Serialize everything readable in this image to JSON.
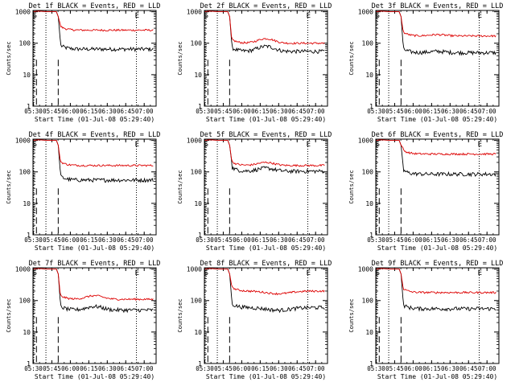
{
  "chart_data": [
    {
      "type": "line",
      "title": "Det 1f BLACK = Events, RED = LLD",
      "xlabel": "Start Time (01-Jul-08 05:29:40)",
      "ylabel": "Counts/sec",
      "series": [
        {
          "name": "BLACK = Events",
          "color": "#000000",
          "level": 65,
          "bump": 0,
          "dip": 0
        },
        {
          "name": "RED = LLD",
          "color": "#dd0000",
          "level": 260,
          "bump": 0,
          "dip": 0
        }
      ]
    },
    {
      "type": "line",
      "title": "Det 2f BLACK = Events, RED = LLD",
      "xlabel": "Start Time (01-Jul-08 05:29:40)",
      "ylabel": "Counts/sec",
      "series": [
        {
          "name": "BLACK = Events",
          "color": "#000000",
          "level": 55,
          "bump": 0.45,
          "dip": 0
        },
        {
          "name": "RED = LLD",
          "color": "#dd0000",
          "level": 100,
          "bump": 0.4,
          "dip": 0
        }
      ]
    },
    {
      "type": "line",
      "title": "Det 3f BLACK = Events, RED = LLD",
      "xlabel": "Start Time (01-Jul-08 05:29:40)",
      "ylabel": "Counts/sec",
      "series": [
        {
          "name": "BLACK = Events",
          "color": "#000000",
          "level": 50,
          "bump": 0.1,
          "dip": 0
        },
        {
          "name": "RED = LLD",
          "color": "#dd0000",
          "level": 170,
          "bump": 0.1,
          "dip": 0
        }
      ]
    },
    {
      "type": "line",
      "title": "Det 4f BLACK = Events, RED = LLD",
      "xlabel": "Start Time (01-Jul-08 05:29:40)",
      "ylabel": "Counts/sec",
      "series": [
        {
          "name": "BLACK = Events",
          "color": "#000000",
          "level": 55,
          "bump": 0,
          "dip": 0
        },
        {
          "name": "RED = LLD",
          "color": "#dd0000",
          "level": 160,
          "bump": 0,
          "dip": 0
        }
      ]
    },
    {
      "type": "line",
      "title": "Det 5f BLACK = Events, RED = LLD",
      "xlabel": "Start Time (01-Jul-08 05:29:40)",
      "ylabel": "Counts/sec",
      "series": [
        {
          "name": "BLACK = Events",
          "color": "#000000",
          "level": 105,
          "bump": 0.25,
          "dip": 0
        },
        {
          "name": "RED = LLD",
          "color": "#dd0000",
          "level": 160,
          "bump": 0.25,
          "dip": 0
        }
      ]
    },
    {
      "type": "line",
      "title": "Det 6f BLACK = Events, RED = LLD",
      "xlabel": "Start Time (01-Jul-08 05:29:40)",
      "ylabel": "Counts/sec",
      "series": [
        {
          "name": "BLACK = Events",
          "color": "#000000",
          "level": 85,
          "bump": 0,
          "dip": 0
        },
        {
          "name": "RED = LLD",
          "color": "#dd0000",
          "level": 370,
          "bump": 0,
          "dip": 0
        }
      ]
    },
    {
      "type": "line",
      "title": "Det 7f BLACK = Events, RED = LLD",
      "xlabel": "Start Time (01-Jul-08 05:29:40)",
      "ylabel": "Counts/sec",
      "series": [
        {
          "name": "BLACK = Events",
          "color": "#000000",
          "level": 50,
          "bump": 0.3,
          "dip": 0
        },
        {
          "name": "RED = LLD",
          "color": "#dd0000",
          "level": 110,
          "bump": 0.3,
          "dip": 0
        }
      ]
    },
    {
      "type": "line",
      "title": "Det 8f BLACK = Events, RED = LLD",
      "xlabel": "Start Time (01-Jul-08 05:29:40)",
      "ylabel": "Counts/sec",
      "series": [
        {
          "name": "BLACK = Events",
          "color": "#000000",
          "level": 60,
          "bump": 0,
          "dip": 0.35
        },
        {
          "name": "RED = LLD",
          "color": "#dd0000",
          "level": 200,
          "bump": 0,
          "dip": 0.35
        }
      ]
    },
    {
      "type": "line",
      "title": "Det 9f BLACK = Events, RED = LLD",
      "xlabel": "Start Time (01-Jul-08 05:29:40)",
      "ylabel": "Counts/sec",
      "series": [
        {
          "name": "BLACK = Events",
          "color": "#000000",
          "level": 55,
          "bump": 0,
          "dip": 0
        },
        {
          "name": "RED = LLD",
          "color": "#dd0000",
          "level": 180,
          "bump": 0,
          "dip": 0
        }
      ]
    }
  ],
  "shared_axes": {
    "x_ticks": [
      "05:30",
      "05:45",
      "06:00",
      "06:15",
      "06:30",
      "06:45",
      "07:00"
    ],
    "x_tick_minutes": [
      0.33,
      15.33,
      30.33,
      45.33,
      60.33,
      75.33,
      90.33
    ],
    "x_range_minutes": [
      0,
      100
    ],
    "y_ticks": [
      "1",
      "10",
      "100",
      "1000"
    ],
    "y_tick_values": [
      1,
      10,
      100,
      1000
    ],
    "y_range": [
      1,
      1100
    ],
    "y_scale": "log",
    "dotted_markers_minutes": [
      -1.5,
      10.5,
      84
    ],
    "dashed_markers_minutes": [
      2.8,
      20.5
    ],
    "dashed_marker_range": [
      1,
      30
    ],
    "marker_labels": [
      {
        "text": "E",
        "minute": 84.5
      },
      {
        "text": "S",
        "minute": 1.5
      }
    ]
  }
}
